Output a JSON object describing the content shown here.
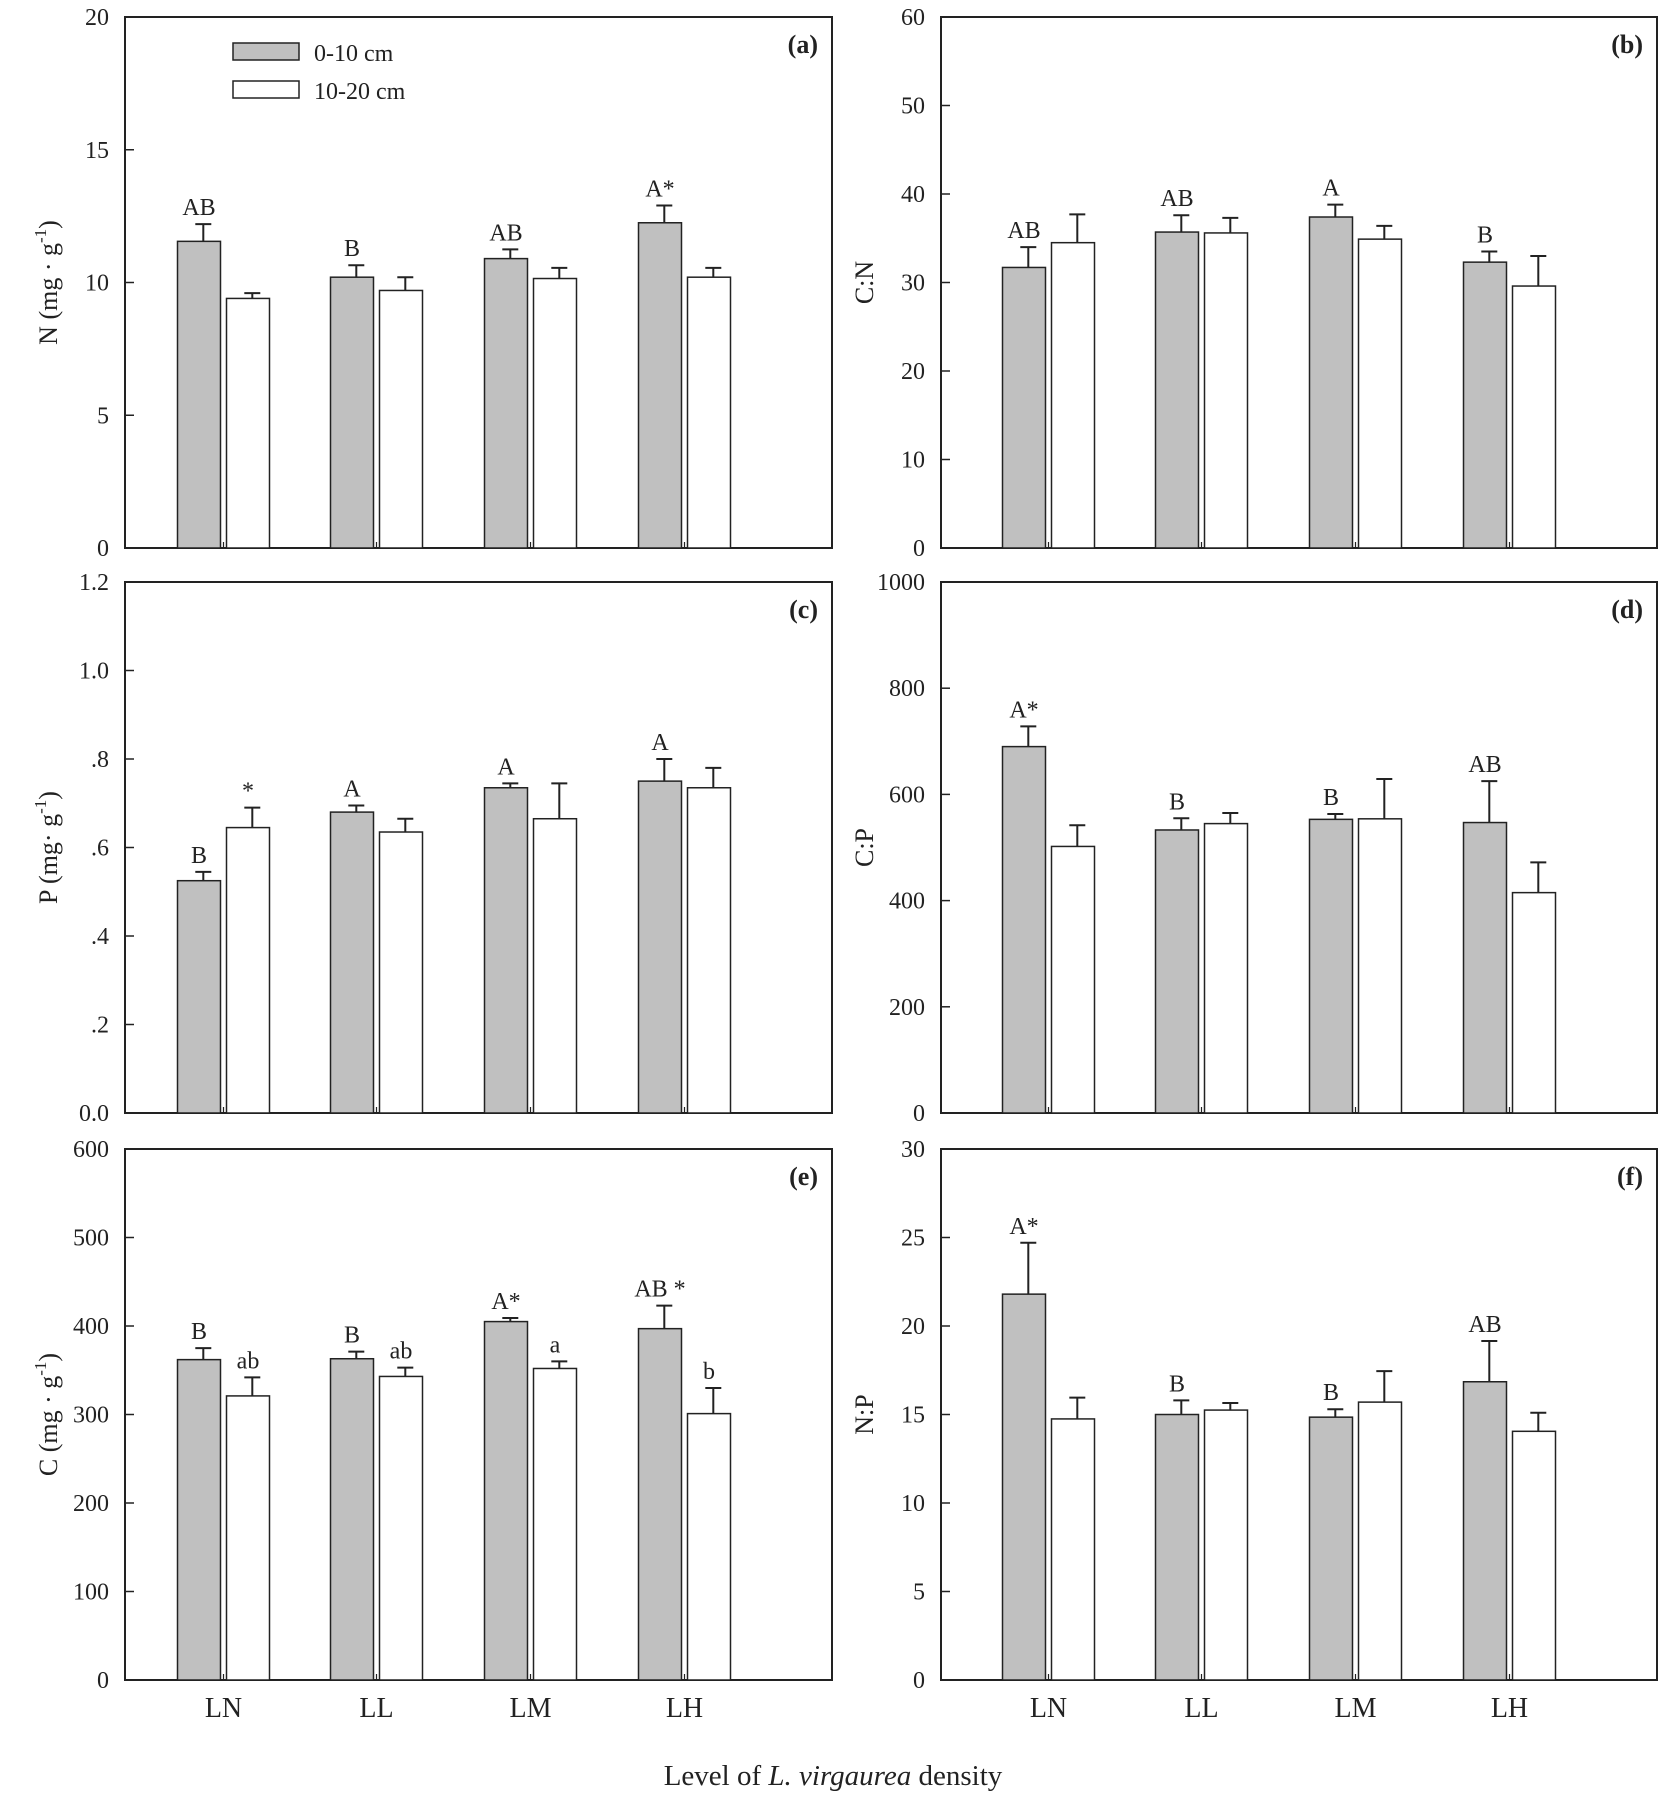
{
  "legend": [
    {
      "label": "0-10 cm",
      "color": "#c0c0c0"
    },
    {
      "label": "10-20 cm",
      "color": "#ffffff"
    }
  ],
  "x_axis_title": {
    "prefix": "Level of ",
    "species": "L. virgaurea",
    "suffix": " density"
  },
  "chart_data": [
    {
      "type": "bar",
      "panel": "(a)",
      "ylabel": {
        "main": "N (mg · g",
        "sup": "-1",
        "close": ")"
      },
      "ylim": [
        0,
        20
      ],
      "yticks": [
        "0",
        "5",
        "10",
        "15",
        "20"
      ],
      "categories": [
        "LN",
        "LL",
        "LM",
        "LH"
      ],
      "series": [
        {
          "name": "0-10 cm",
          "values": [
            11.55,
            10.2,
            10.9,
            12.25
          ],
          "errors": [
            0.65,
            0.45,
            0.35,
            0.65
          ],
          "labels": [
            "AB",
            "B",
            "AB",
            "A*"
          ]
        },
        {
          "name": "10-20 cm",
          "values": [
            9.4,
            9.7,
            10.15,
            10.2
          ],
          "errors": [
            0.2,
            0.5,
            0.4,
            0.35
          ],
          "labels": [
            "",
            "",
            "",
            ""
          ]
        }
      ]
    },
    {
      "type": "bar",
      "panel": "(b)",
      "ylabel": {
        "main": "C:N",
        "sup": "",
        "close": ""
      },
      "ylim": [
        0,
        60
      ],
      "yticks": [
        "0",
        "10",
        "20",
        "30",
        "40",
        "50",
        "60"
      ],
      "categories": [
        "LN",
        "LL",
        "LM",
        "LH"
      ],
      "series": [
        {
          "name": "0-10 cm",
          "values": [
            31.7,
            35.7,
            37.4,
            32.3
          ],
          "errors": [
            2.3,
            1.9,
            1.4,
            1.2
          ],
          "labels": [
            "AB",
            "AB",
            "A",
            "B"
          ]
        },
        {
          "name": "10-20 cm",
          "values": [
            34.5,
            35.6,
            34.9,
            29.6
          ],
          "errors": [
            3.2,
            1.7,
            1.5,
            3.4
          ],
          "labels": [
            "",
            "",
            "",
            ""
          ]
        }
      ]
    },
    {
      "type": "bar",
      "panel": "(c)",
      "ylabel": {
        "main": "P (mg· g",
        "sup": "-1",
        "close": ")"
      },
      "ylim": [
        0,
        1.2
      ],
      "yticks": [
        "0.0",
        ".2",
        ".4",
        ".6",
        ".8",
        "1.0",
        "1.2"
      ],
      "categories": [
        "LN",
        "LL",
        "LM",
        "LH"
      ],
      "series": [
        {
          "name": "0-10 cm",
          "values": [
            0.525,
            0.68,
            0.735,
            0.75
          ],
          "errors": [
            0.02,
            0.015,
            0.01,
            0.05
          ],
          "labels": [
            "B",
            "A",
            "A",
            "A"
          ]
        },
        {
          "name": "10-20 cm",
          "values": [
            0.645,
            0.635,
            0.665,
            0.735
          ],
          "errors": [
            0.045,
            0.03,
            0.08,
            0.045
          ],
          "labels": [
            "*",
            "",
            "",
            ""
          ]
        }
      ]
    },
    {
      "type": "bar",
      "panel": "(d)",
      "ylabel": {
        "main": "C:P",
        "sup": "",
        "close": ""
      },
      "ylim": [
        0,
        1000
      ],
      "yticks": [
        "0",
        "200",
        "400",
        "600",
        "800",
        "1000"
      ],
      "categories": [
        "LN",
        "LL",
        "LM",
        "LH"
      ],
      "series": [
        {
          "name": "0-10 cm",
          "values": [
            690,
            533,
            553,
            547
          ],
          "errors": [
            38,
            22,
            10,
            78
          ],
          "labels": [
            "A*",
            "B",
            "B",
            "AB"
          ]
        },
        {
          "name": "10-20 cm",
          "values": [
            502,
            545,
            554,
            415
          ],
          "errors": [
            40,
            20,
            75,
            57
          ],
          "labels": [
            "",
            "",
            "",
            ""
          ]
        }
      ]
    },
    {
      "type": "bar",
      "panel": "(e)",
      "ylabel": {
        "main": "C (mg · g",
        "sup": "-1",
        "close": ")"
      },
      "ylim": [
        0,
        600
      ],
      "yticks": [
        "0",
        "100",
        "200",
        "300",
        "400",
        "500",
        "600"
      ],
      "categories": [
        "LN",
        "LL",
        "LM",
        "LH"
      ],
      "series": [
        {
          "name": "0-10 cm",
          "values": [
            362,
            363,
            405,
            397
          ],
          "errors": [
            13,
            8,
            4,
            26
          ],
          "labels": [
            "B",
            "B",
            "A*",
            "AB *"
          ]
        },
        {
          "name": "10-20 cm",
          "values": [
            321,
            343,
            352,
            301
          ],
          "errors": [
            21,
            10,
            8,
            29
          ],
          "labels": [
            "ab",
            "ab",
            "a",
            "b"
          ]
        }
      ]
    },
    {
      "type": "bar",
      "panel": "(f)",
      "ylabel": {
        "main": "N:P",
        "sup": "",
        "close": ""
      },
      "ylim": [
        0,
        30
      ],
      "yticks": [
        "0",
        "5",
        "10",
        "15",
        "20",
        "25",
        "30"
      ],
      "categories": [
        "LN",
        "LL",
        "LM",
        "LH"
      ],
      "series": [
        {
          "name": "0-10 cm",
          "values": [
            21.8,
            15.0,
            14.85,
            16.85
          ],
          "errors": [
            2.9,
            0.8,
            0.45,
            2.3
          ],
          "labels": [
            "A*",
            "B",
            "B",
            "AB"
          ]
        },
        {
          "name": "10-20 cm",
          "values": [
            14.75,
            15.25,
            15.7,
            14.05
          ],
          "errors": [
            1.2,
            0.4,
            1.75,
            1.05
          ],
          "labels": [
            "",
            "",
            "",
            ""
          ]
        }
      ]
    }
  ]
}
